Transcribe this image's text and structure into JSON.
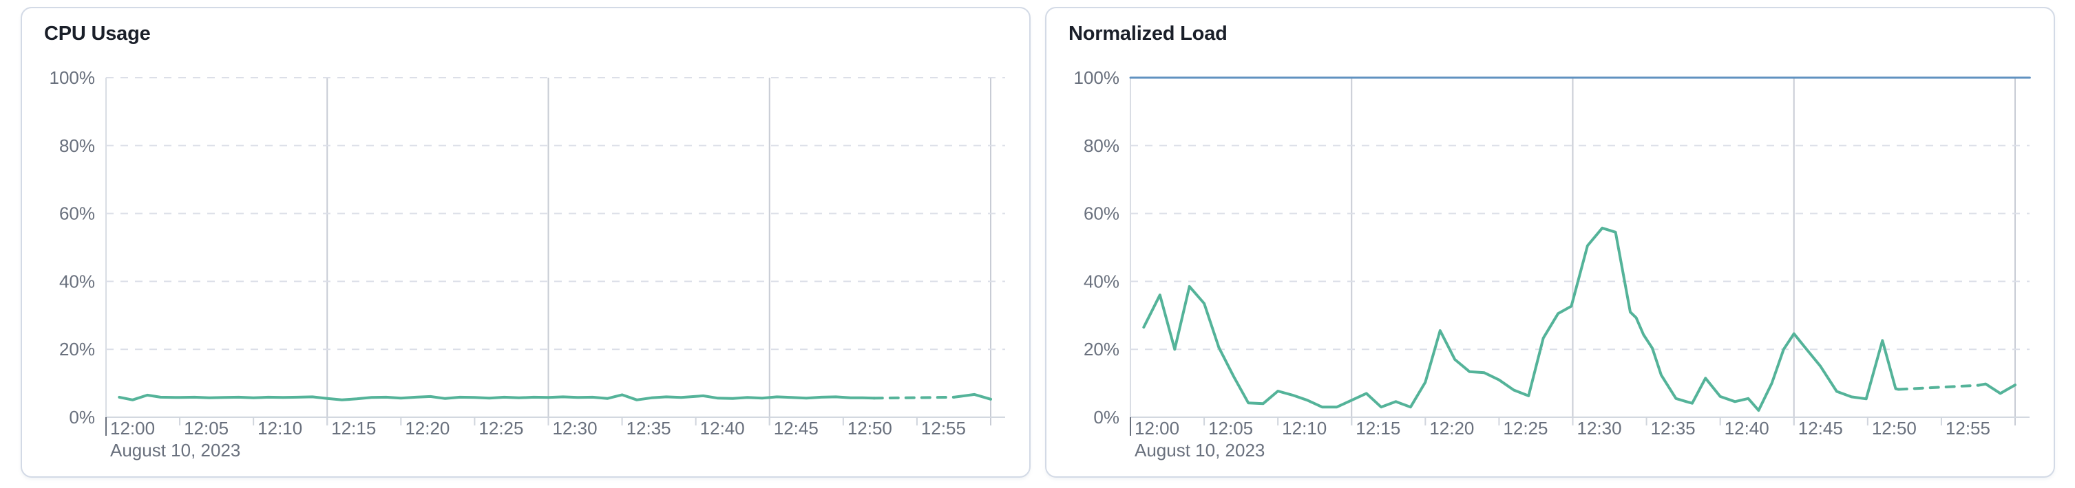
{
  "page": {
    "background_color": "#ffffff",
    "panel_border_color": "#d3dae6",
    "title_color": "#1a1f29",
    "axis_label_color": "#69707d",
    "vertical_gridline_color": "#c8ccd5",
    "horizontal_gridline_color": "#dcdfe8",
    "axis_line_color": "#d3d8e0"
  },
  "chart_data": [
    {
      "type": "line",
      "title": "CPU Usage",
      "date_label": "August 10, 2023",
      "x_tick_labels": [
        "12:00",
        "12:05",
        "12:10",
        "12:15",
        "12:20",
        "12:25",
        "12:30",
        "12:35",
        "12:40",
        "12:45",
        "12:50",
        "12:55"
      ],
      "x_tick_minutes": [
        0,
        5,
        10,
        15,
        20,
        25,
        30,
        35,
        40,
        45,
        50,
        55
      ],
      "vertical_gridline_minutes": [
        15,
        30,
        45,
        60
      ],
      "y_tick_labels": [
        "0%",
        "20%",
        "40%",
        "60%",
        "80%",
        "100%"
      ],
      "y_tick_values": [
        0,
        20,
        40,
        60,
        80,
        100
      ],
      "ylim": [
        0,
        100
      ],
      "x_domain_minutes": [
        0,
        61
      ],
      "grid": true,
      "legend": "none",
      "series": [
        {
          "name": "cpu-usage",
          "color": "#54B399",
          "width": 4,
          "segments": [
            {
              "style": "solid",
              "points": [
                [
                  0.9,
                  5.9
                ],
                [
                  1.8,
                  5.1
                ],
                [
                  2.8,
                  6.5
                ],
                [
                  3.7,
                  5.9
                ],
                [
                  5,
                  5.8
                ],
                [
                  6,
                  5.9
                ],
                [
                  7,
                  5.7
                ],
                [
                  8,
                  5.8
                ],
                [
                  9,
                  5.9
                ],
                [
                  10,
                  5.7
                ],
                [
                  11,
                  5.9
                ],
                [
                  12,
                  5.8
                ],
                [
                  13,
                  5.9
                ],
                [
                  14,
                  6.0
                ],
                [
                  15,
                  5.5
                ],
                [
                  16,
                  5.1
                ],
                [
                  17,
                  5.4
                ],
                [
                  18,
                  5.8
                ],
                [
                  19,
                  5.9
                ],
                [
                  20,
                  5.6
                ],
                [
                  21,
                  5.9
                ],
                [
                  22,
                  6.1
                ],
                [
                  23,
                  5.5
                ],
                [
                  24,
                  5.9
                ],
                [
                  25,
                  5.8
                ],
                [
                  26,
                  5.6
                ],
                [
                  27,
                  5.9
                ],
                [
                  28,
                  5.7
                ],
                [
                  29,
                  5.9
                ],
                [
                  30,
                  5.8
                ],
                [
                  31,
                  6.0
                ],
                [
                  32,
                  5.8
                ],
                [
                  33,
                  5.9
                ],
                [
                  34,
                  5.5
                ],
                [
                  35,
                  6.6
                ],
                [
                  36,
                  5.1
                ],
                [
                  37,
                  5.7
                ],
                [
                  38,
                  6.0
                ],
                [
                  39,
                  5.8
                ],
                [
                  40.5,
                  6.3
                ],
                [
                  41.5,
                  5.6
                ],
                [
                  42.5,
                  5.5
                ],
                [
                  43.5,
                  5.8
                ],
                [
                  44.5,
                  5.6
                ],
                [
                  45.5,
                  6.0
                ],
                [
                  46.5,
                  5.8
                ],
                [
                  47.5,
                  5.6
                ],
                [
                  48.5,
                  5.9
                ],
                [
                  49.5,
                  6.0
                ],
                [
                  50.5,
                  5.7
                ],
                [
                  51.3,
                  5.7
                ],
                [
                  52.1,
                  5.6
                ]
              ]
            },
            {
              "style": "dashed",
              "points": [
                [
                  52.1,
                  5.6
                ],
                [
                  57.5,
                  5.9
                ]
              ]
            },
            {
              "style": "solid",
              "points": [
                [
                  57.5,
                  5.9
                ],
                [
                  58.9,
                  6.7
                ],
                [
                  60,
                  5.3
                ]
              ]
            }
          ]
        }
      ]
    },
    {
      "type": "line",
      "title": "Normalized Load",
      "date_label": "August 10, 2023",
      "x_tick_labels": [
        "12:00",
        "12:05",
        "12:10",
        "12:15",
        "12:20",
        "12:25",
        "12:30",
        "12:35",
        "12:40",
        "12:45",
        "12:50",
        "12:55"
      ],
      "x_tick_minutes": [
        0,
        5,
        10,
        15,
        20,
        25,
        30,
        35,
        40,
        45,
        50,
        55
      ],
      "vertical_gridline_minutes": [
        15,
        30,
        45,
        60
      ],
      "y_tick_labels": [
        "0%",
        "20%",
        "40%",
        "60%",
        "80%",
        "100%"
      ],
      "y_tick_values": [
        0,
        20,
        40,
        60,
        80,
        100
      ],
      "ylim": [
        0,
        100
      ],
      "x_domain_minutes": [
        0,
        61
      ],
      "grid": true,
      "legend": "none",
      "series": [
        {
          "name": "limit-100-percent",
          "color": "#6092C0",
          "width": 3,
          "segments": [
            {
              "style": "solid",
              "points": [
                [
                  0,
                  100
                ],
                [
                  61,
                  100
                ]
              ]
            }
          ]
        },
        {
          "name": "normalized-load",
          "color": "#54B399",
          "width": 4,
          "segments": [
            {
              "style": "solid",
              "points": [
                [
                  0.9,
                  26.5
                ],
                [
                  2,
                  36
                ],
                [
                  3,
                  20
                ],
                [
                  4,
                  38.5
                ],
                [
                  5,
                  33.5
                ],
                [
                  6,
                  20.5
                ],
                [
                  7,
                  12
                ],
                [
                  8,
                  4.2
                ],
                [
                  9,
                  4
                ],
                [
                  10,
                  7.7
                ],
                [
                  11,
                  6.5
                ],
                [
                  12,
                  5
                ],
                [
                  13,
                  3
                ],
                [
                  14,
                  3
                ],
                [
                  15,
                  5
                ],
                [
                  16,
                  7
                ],
                [
                  17,
                  3
                ],
                [
                  18,
                  4.6
                ],
                [
                  19,
                  3
                ],
                [
                  20,
                  10.3
                ],
                [
                  21,
                  25.5
                ],
                [
                  22,
                  17
                ],
                [
                  23,
                  13.4
                ],
                [
                  24,
                  13.1
                ],
                [
                  25,
                  11
                ],
                [
                  26,
                  8
                ],
                [
                  27,
                  6.3
                ],
                [
                  28,
                  23.3
                ],
                [
                  29,
                  30.5
                ],
                [
                  29.9,
                  32.7
                ],
                [
                  31,
                  50.5
                ],
                [
                  32,
                  55.7
                ],
                [
                  32.9,
                  54.5
                ],
                [
                  33.9,
                  31
                ],
                [
                  34.3,
                  29.3
                ],
                [
                  34.8,
                  24.3
                ],
                [
                  35.4,
                  20.3
                ],
                [
                  36,
                  12.4
                ],
                [
                  37,
                  5.5
                ],
                [
                  37.7,
                  4.6
                ],
                [
                  38.1,
                  4.1
                ],
                [
                  39,
                  11.5
                ],
                [
                  40,
                  6.1
                ],
                [
                  41,
                  4.6
                ],
                [
                  41.9,
                  5.5
                ],
                [
                  42.6,
                  2
                ],
                [
                  43.5,
                  10
                ],
                [
                  44.3,
                  20
                ],
                [
                  45,
                  24.6
                ],
                [
                  45.8,
                  20.3
                ],
                [
                  46.8,
                  15
                ],
                [
                  47.9,
                  7.6
                ],
                [
                  48.9,
                  6
                ],
                [
                  49.9,
                  5.4
                ],
                [
                  51,
                  22.6
                ],
                [
                  51.9,
                  8.4
                ],
                [
                  52.1,
                  8.2
                ]
              ]
            },
            {
              "style": "dashed",
              "points": [
                [
                  52.1,
                  8.2
                ],
                [
                  57.5,
                  9.4
                ]
              ]
            },
            {
              "style": "solid",
              "points": [
                [
                  57.5,
                  9.4
                ],
                [
                  58,
                  9.8
                ],
                [
                  59,
                  7
                ],
                [
                  60,
                  9.5
                ]
              ]
            }
          ]
        }
      ]
    }
  ]
}
